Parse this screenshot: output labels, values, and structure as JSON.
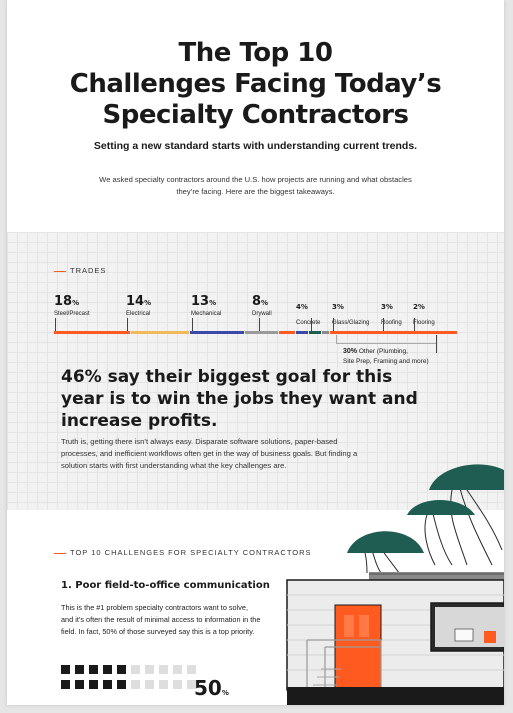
{
  "header": {
    "title_lines": [
      "The Top 10",
      "Challenges Facing Today’s",
      "Specialty Contractors"
    ],
    "subtitle": "Setting a new standard starts with understanding current trends.",
    "intro": "We asked specialty contractors around the U.S. how projects are running and what obstacles they’re facing. Here are the biggest takeaways."
  },
  "trades": {
    "label": "TRADES",
    "items": [
      {
        "value": "18",
        "unit": "%",
        "label": "Steel/Precast",
        "color": "#ff5a1f"
      },
      {
        "value": "14",
        "unit": "%",
        "label": "Electrical",
        "color": "#f2b95a"
      },
      {
        "value": "13",
        "unit": "%",
        "label": "Mechanical",
        "color": "#3b4aa8"
      },
      {
        "value": "8",
        "unit": "%",
        "label": "Drywall",
        "color": "#9a9a9a"
      },
      {
        "value": "4%",
        "label": "Concrete",
        "color": "#ff5a1f"
      },
      {
        "value": "3%",
        "label": "Glass/Glazing",
        "color": "#3b4aa8"
      },
      {
        "value": "3%",
        "label": "Roofing",
        "color": "#1f5c52"
      },
      {
        "value": "2%",
        "label": "Flooring",
        "color": "#8a8a8a"
      }
    ],
    "other_pct": "30%",
    "other_label": "Other (Plumbing,",
    "other_label2": "Site Prep, Framing and more)",
    "other_color": "#ff5a1f"
  },
  "goal": {
    "headline": "46% say their biggest goal for this year is to win the jobs they want and increase profits.",
    "text": "Truth is, getting there isn’t always easy. Disparate software solutions, paper-based processes, and inefficient workflows often get in the way of business goals. But finding a solution starts with first understanding what the key challenges are."
  },
  "challenges": {
    "label": "TOP 10 CHALLENGES FOR SPECIALTY CONTRACTORS",
    "first_title": "1. Poor field-to-office communication",
    "first_text": "This is the #1 problem specialty contractors want to solve, and it’s often the result of minimal access to information in the field. In fact, 50% of those surveyed say this is a top priority.",
    "stat_value": "50",
    "stat_unit": "%",
    "stat_fraction": 0.5
  },
  "colors": {
    "accent": "#ff5a1f",
    "tree": "#1f5c52",
    "dark": "#1a1a1a"
  }
}
